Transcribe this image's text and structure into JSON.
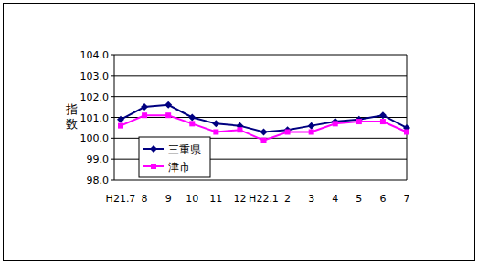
{
  "chart_data": {
    "type": "line",
    "y_label": "指数",
    "categories": [
      "H21.7",
      "8",
      "9",
      "10",
      "11",
      "12",
      "H22.1",
      "2",
      "3",
      "4",
      "5",
      "6",
      "7"
    ],
    "series": [
      {
        "name": "三重県",
        "color": "#000080",
        "marker": "diamond",
        "values": [
          100.9,
          101.5,
          101.6,
          101.0,
          100.7,
          100.6,
          100.3,
          100.4,
          100.6,
          100.8,
          100.9,
          101.1,
          100.5
        ]
      },
      {
        "name": "津市",
        "color": "#ff00ff",
        "marker": "square",
        "values": [
          100.6,
          101.1,
          101.1,
          100.7,
          100.3,
          100.4,
          99.9,
          100.3,
          100.3,
          100.7,
          100.8,
          100.8,
          100.3
        ]
      }
    ],
    "ylim": [
      98,
      104
    ],
    "yticks": [
      {
        "value": 98,
        "label": "98.0"
      },
      {
        "value": 99,
        "label": "99.0"
      },
      {
        "value": 100,
        "label": "100.0"
      },
      {
        "value": 101,
        "label": "101.0"
      },
      {
        "value": 102,
        "label": "102.0"
      },
      {
        "value": 103,
        "label": "103.0"
      },
      {
        "value": 104,
        "label": "104.0"
      }
    ],
    "grid": true,
    "legend": "left"
  }
}
